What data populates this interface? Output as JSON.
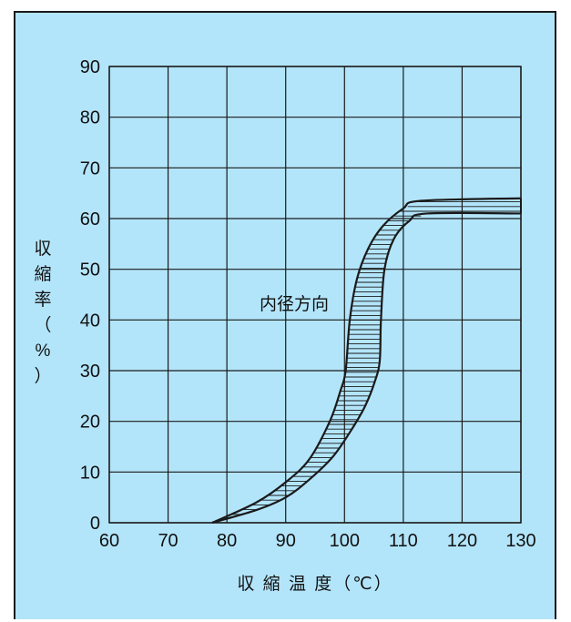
{
  "colors": {
    "panel_background": "#b3e5fa",
    "plot_background": "#b3e5fa",
    "line": "#1a1a1a"
  },
  "chart_data": {
    "type": "area",
    "title": "",
    "xlabel": "収 縮 温 度（℃）",
    "ylabel": "収縮率（%）",
    "ylabel_chars": [
      "収",
      "縮",
      "率",
      "（",
      "%",
      "）"
    ],
    "annotation": "内径方向",
    "xlim": [
      60,
      130
    ],
    "ylim": [
      0,
      90
    ],
    "x_ticks": [
      60,
      70,
      80,
      90,
      100,
      110,
      120,
      130
    ],
    "y_ticks": [
      0,
      10,
      20,
      30,
      40,
      50,
      60,
      70,
      80,
      90
    ],
    "grid": true,
    "legend": "none",
    "band_hatching": "horizontal",
    "series": [
      {
        "values": [
          [
            77.5,
            0
          ],
          [
            85,
            4
          ],
          [
            90,
            8
          ],
          [
            94,
            12.5
          ],
          [
            97.5,
            20
          ],
          [
            99.3,
            26
          ],
          [
            100.2,
            30
          ],
          [
            100.9,
            40
          ],
          [
            102.1,
            48
          ],
          [
            104,
            54
          ],
          [
            106.5,
            58.5
          ],
          [
            110,
            62
          ],
          [
            113,
            63.5
          ],
          [
            130,
            64
          ]
        ]
      },
      {
        "values": [
          [
            77.5,
            0
          ],
          [
            85,
            2.5
          ],
          [
            90,
            5
          ],
          [
            94,
            8.5
          ],
          [
            98,
            13
          ],
          [
            101,
            18
          ],
          [
            103.5,
            23
          ],
          [
            105.2,
            28
          ],
          [
            106,
            32
          ],
          [
            106.2,
            40
          ],
          [
            106.8,
            50
          ],
          [
            108.4,
            56
          ],
          [
            111,
            59.5
          ],
          [
            114,
            61
          ],
          [
            130,
            61
          ]
        ]
      }
    ]
  }
}
